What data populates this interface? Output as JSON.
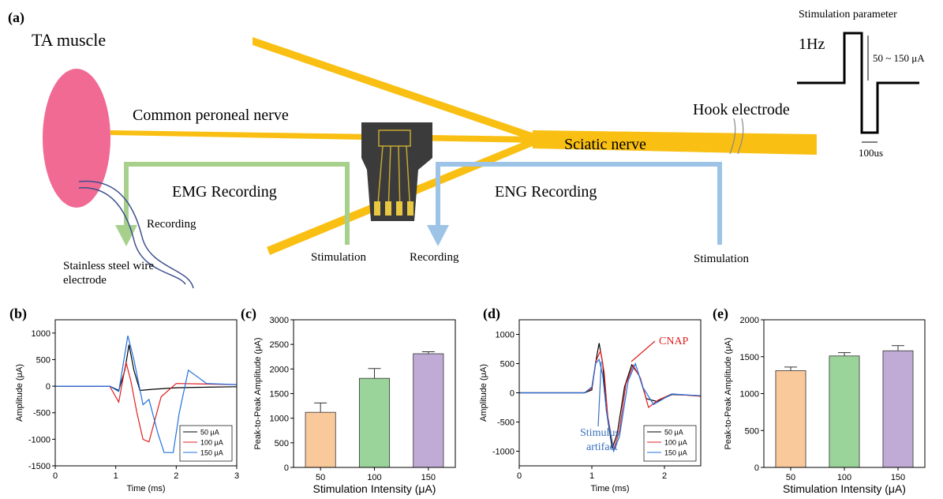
{
  "diagram": {
    "panel_label": "(a)",
    "muscle": "TA muscle",
    "peroneal": "Common peroneal nerve",
    "emg": "EMG Recording",
    "emg_recording": "Recording",
    "electrode": [
      "Stainless steel wire",
      "electrode"
    ],
    "emg_stimulation": "Stimulation",
    "eng_recording": "Recording",
    "eng": "ENG Recording",
    "eng_stimulation": "Stimulation",
    "sciatic": "Sciatic nerve",
    "hook": "Hook electrode",
    "param_title": "Stimulation parameter",
    "frequency": "1Hz",
    "amplitude": "50 ~ 150 μA",
    "width": "100us"
  },
  "chart_data": [
    {
      "type": "line",
      "label": "(b)",
      "xlabel": "Time (ms)",
      "ylabel": "Amplitude (μA)",
      "xlim": [
        0,
        3
      ],
      "xticks": [
        0,
        1,
        2,
        3
      ],
      "ylim": [
        -1500,
        1250
      ],
      "yticks": [
        -1500,
        -1000,
        -500,
        0,
        500,
        1000
      ],
      "series": [
        {
          "name": "50 μA",
          "color": "#000000",
          "x": [
            0,
            0.5,
            0.9,
            1.05,
            1.15,
            1.22,
            1.3,
            1.4,
            1.6,
            2,
            2.5,
            3
          ],
          "values": [
            0,
            0,
            0,
            -80,
            300,
            780,
            300,
            -80,
            -60,
            -30,
            -20,
            -10
          ]
        },
        {
          "name": "100 μA",
          "color": "#e02020",
          "x": [
            0,
            0.5,
            0.9,
            1.05,
            1.17,
            1.25,
            1.35,
            1.45,
            1.55,
            1.75,
            2.0,
            3
          ],
          "values": [
            0,
            0,
            0,
            -300,
            450,
            100,
            -500,
            -1000,
            -1050,
            -200,
            50,
            30
          ]
        },
        {
          "name": "150 μA",
          "color": "#2070e0",
          "x": [
            0,
            0.9,
            1.05,
            1.2,
            1.3,
            1.45,
            1.55,
            1.7,
            1.8,
            1.95,
            2.05,
            2.2,
            2.5,
            3
          ],
          "values": [
            0,
            0,
            -100,
            950,
            500,
            -350,
            -250,
            -900,
            -1250,
            -1250,
            -500,
            300,
            50,
            30
          ]
        }
      ]
    },
    {
      "type": "bar",
      "label": "(c)",
      "xlabel": "Stimulation Intensity (μA)",
      "ylabel": "Peak-to-Peak Amplitude (μA)",
      "categories": [
        "50",
        "100",
        "150"
      ],
      "values": [
        1120,
        1810,
        2310
      ],
      "errors": [
        190,
        200,
        40
      ],
      "colors": [
        "#f9c89b",
        "#9bd49b",
        "#c0aad6"
      ],
      "ylim": [
        0,
        3000
      ],
      "yticks": [
        0,
        500,
        1000,
        1500,
        2000,
        2500,
        3000
      ]
    },
    {
      "type": "line",
      "label": "(d)",
      "xlabel": "Time (ms)",
      "ylabel": "Amplitude (μA)",
      "xlim": [
        0,
        2.5
      ],
      "xticks": [
        0,
        1,
        2
      ],
      "ylim": [
        -1250,
        1250
      ],
      "yticks": [
        -1000,
        -500,
        0,
        500,
        1000
      ],
      "annotations": [
        {
          "text": [
            "CNAP"
          ],
          "color": "#e02020"
        },
        {
          "text": [
            "Stimulus",
            "artifact"
          ],
          "color": "#3a6fc0"
        }
      ],
      "series": [
        {
          "name": "50 μA",
          "color": "#000000",
          "x": [
            0,
            0.7,
            0.9,
            1.0,
            1.05,
            1.1,
            1.15,
            1.2,
            1.28,
            1.35,
            1.45,
            1.55,
            1.65,
            1.75,
            1.9,
            2.1,
            2.5
          ],
          "values": [
            0,
            0,
            0,
            50,
            500,
            850,
            500,
            -300,
            -950,
            -700,
            100,
            480,
            300,
            -100,
            -150,
            -30,
            -50
          ]
        },
        {
          "name": "100 μA",
          "color": "#e02020",
          "x": [
            0,
            0.9,
            1.0,
            1.06,
            1.12,
            1.17,
            1.22,
            1.3,
            1.38,
            1.47,
            1.57,
            1.67,
            1.78,
            1.92,
            2.1,
            2.5
          ],
          "values": [
            0,
            0,
            80,
            550,
            720,
            350,
            -400,
            -980,
            -650,
            150,
            470,
            250,
            -250,
            -120,
            -20,
            -60
          ]
        },
        {
          "name": "150 μA",
          "color": "#2070e0",
          "x": [
            0,
            0.9,
            1.0,
            1.05,
            1.1,
            1.15,
            1.2,
            1.3,
            1.38,
            1.5,
            1.6,
            1.7,
            1.85,
            2.1,
            2.5
          ],
          "values": [
            0,
            0,
            100,
            500,
            570,
            300,
            -300,
            -1000,
            -750,
            200,
            500,
            100,
            -200,
            -20,
            -50
          ]
        }
      ]
    },
    {
      "type": "bar",
      "label": "(e)",
      "xlabel": "Stimulation Intensity (μA)",
      "ylabel": "Peak-to-Peak Amplitude (μA)",
      "categories": [
        "50",
        "100",
        "150"
      ],
      "values": [
        1310,
        1510,
        1580
      ],
      "errors": [
        50,
        45,
        70
      ],
      "colors": [
        "#f9c89b",
        "#9bd49b",
        "#c0aad6"
      ],
      "ylim": [
        0,
        2000
      ],
      "yticks": [
        0,
        500,
        1000,
        1500,
        2000
      ]
    }
  ]
}
